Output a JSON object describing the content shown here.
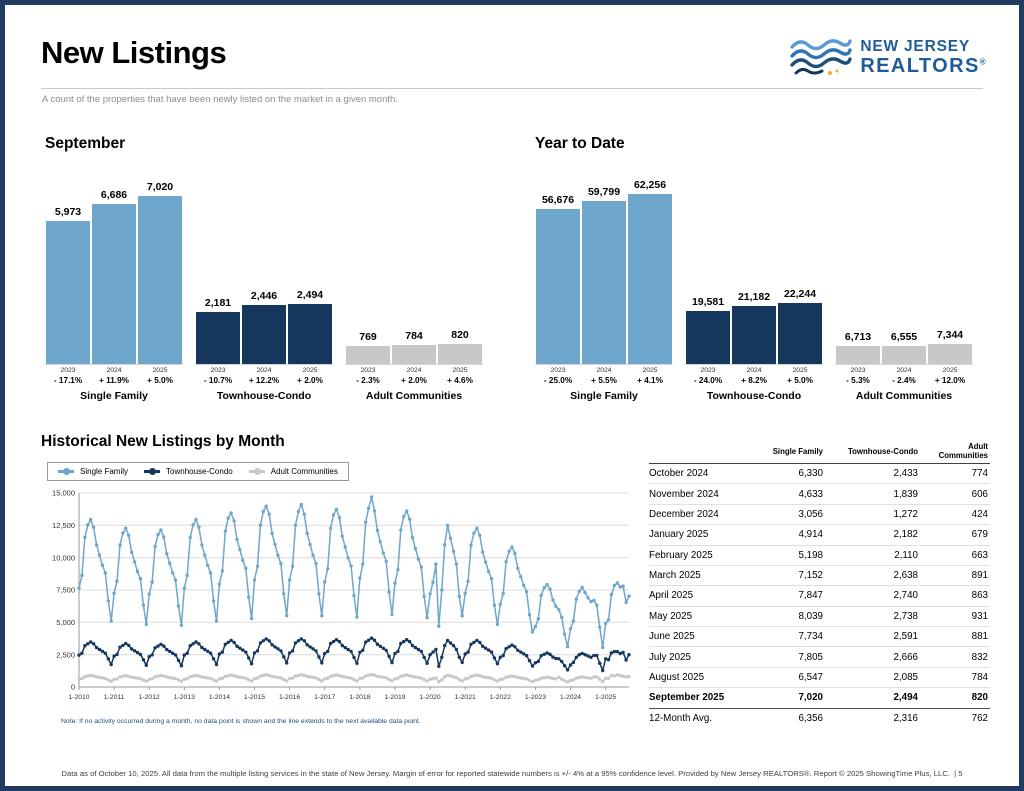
{
  "page": {
    "title": "New Listings",
    "subtitle": "A count of the properties that have been newly listed on the market in a given month.",
    "footer": "Data as of October 10, 2025. All data from the multiple listing services in the state of New Jersey. Margin of error for reported statewide numbers is +/- 4% at a 95% confidence level. Provided by New Jersey REALTORS®. Report © 2025 ShowingTime Plus, LLC.",
    "page_label": "| 5"
  },
  "logo": {
    "line1": "NEW JERSEY",
    "line2": "REALTORS",
    "registered": "®"
  },
  "colors": {
    "single_family": "#6FA6CB",
    "townhouse_condo": "#16375D",
    "adult_communities": "#C8C8C8",
    "page_border": "#203A60",
    "logo_blue": "#1F5C99",
    "note_blue": "#1F4E79"
  },
  "chart_data": [
    {
      "type": "bar",
      "title": "September",
      "years": [
        "2023",
        "2024",
        "2025"
      ],
      "ylim": [
        0,
        7500
      ],
      "groups": [
        {
          "label": "Single Family",
          "values": [
            5973,
            6686,
            7020
          ],
          "changes": [
            "- 17.1%",
            "+ 11.9%",
            "+ 5.0%"
          ]
        },
        {
          "label": "Townhouse-Condo",
          "values": [
            2181,
            2446,
            2494
          ],
          "changes": [
            "- 10.7%",
            "+ 12.2%",
            "+ 2.0%"
          ]
        },
        {
          "label": "Adult Communities",
          "values": [
            769,
            784,
            820
          ],
          "changes": [
            "- 2.3%",
            "+ 2.0%",
            "+ 4.6%"
          ]
        }
      ]
    },
    {
      "type": "bar",
      "title": "Year to Date",
      "years": [
        "2023",
        "2024",
        "2025"
      ],
      "ylim": [
        0,
        66000
      ],
      "groups": [
        {
          "label": "Single Family",
          "values": [
            56676,
            59799,
            62256
          ],
          "changes": [
            "- 25.0%",
            "+ 5.5%",
            "+ 4.1%"
          ]
        },
        {
          "label": "Townhouse-Condo",
          "values": [
            19581,
            21182,
            22244
          ],
          "changes": [
            "- 24.0%",
            "+ 8.2%",
            "+ 5.0%"
          ]
        },
        {
          "label": "Adult Communities",
          "values": [
            6713,
            6555,
            7344
          ],
          "changes": [
            "- 5.3%",
            "- 2.4%",
            "+ 12.0%"
          ]
        }
      ]
    },
    {
      "type": "line",
      "title": "Historical New Listings by Month",
      "note": "Note: If no activity occurred during a month, no data point is shown and the line extends to the next available data point.",
      "x_start": "1-2010",
      "x_end": "9-2025",
      "x_ticks": [
        "1-2010",
        "1-2011",
        "1-2012",
        "1-2013",
        "1-2014",
        "1-2015",
        "1-2016",
        "1-2017",
        "1-2018",
        "1-2019",
        "1-2020",
        "1-2021",
        "1-2022",
        "1-2023",
        "1-2024",
        "1-2025"
      ],
      "ylim": [
        0,
        15000
      ],
      "yticks": [
        0,
        2500,
        5000,
        7500,
        10000,
        12500,
        15000
      ],
      "series": [
        {
          "name": "Single Family",
          "color": "#6FA6CB",
          "values": [
            7640,
            8620,
            11560,
            12540,
            12940,
            12350,
            10980,
            10190,
            9410,
            8820,
            6660,
            5100,
            7250,
            8180,
            10970,
            11900,
            12280,
            11720,
            10420,
            9670,
            8930,
            8370,
            6320,
            4840,
            7180,
            8100,
            10860,
            11780,
            12140,
            11590,
            10300,
            9570,
            8830,
            8280,
            6260,
            4780,
            7640,
            8620,
            11560,
            12540,
            12940,
            12350,
            10980,
            10190,
            9410,
            8820,
            6660,
            5100,
            7960,
            8980,
            12040,
            13060,
            13460,
            12850,
            11420,
            10610,
            9790,
            9180,
            6940,
            5300,
            8270,
            9330,
            12510,
            13570,
            13990,
            13360,
            11870,
            11020,
            10180,
            9540,
            7210,
            5510,
            8270,
            9330,
            12510,
            13570,
            14100,
            13360,
            11870,
            11020,
            10180,
            9540,
            7210,
            5510,
            8110,
            9150,
            12270,
            13310,
            13730,
            13100,
            11650,
            10820,
            9980,
            9360,
            7070,
            5410,
            8420,
            9500,
            12740,
            13820,
            14700,
            13610,
            12100,
            11230,
            10370,
            9720,
            7340,
            5620,
            8030,
            9060,
            12150,
            13180,
            13600,
            12980,
            11540,
            10710,
            9890,
            9270,
            7000,
            5360,
            7200,
            8100,
            9500,
            4700,
            7500,
            11000,
            12500,
            11500,
            10500,
            9500,
            7000,
            5500,
            7250,
            8180,
            10970,
            11900,
            12280,
            11720,
            10420,
            9670,
            8930,
            8370,
            6320,
            4840,
            6400,
            7220,
            9680,
            10500,
            10820,
            10330,
            9180,
            8530,
            7870,
            7380,
            5580,
            4260,
            4680,
            5280,
            7080,
            7680,
            7920,
            7560,
            6720,
            6240,
            5973,
            5400,
            4080,
            3120,
            4500,
            5100,
            6800,
            7400,
            7700,
            7300,
            6900,
            6600,
            6686,
            6330,
            4633,
            3056,
            4914,
            5198,
            7152,
            7847,
            8039,
            7734,
            7805,
            6547,
            7020
          ]
        },
        {
          "name": "Townhouse-Condo",
          "color": "#16375D",
          "values": [
            2470,
            2610,
            3190,
            3340,
            3480,
            3340,
            3050,
            2900,
            2760,
            2610,
            2180,
            1740,
            2380,
            2520,
            3080,
            3220,
            3360,
            3220,
            2940,
            2800,
            2660,
            2520,
            2100,
            1680,
            2340,
            2480,
            3030,
            3160,
            3300,
            3160,
            2890,
            2750,
            2610,
            2480,
            2060,
            1650,
            2470,
            2610,
            3190,
            3340,
            3480,
            3340,
            3050,
            2900,
            2760,
            2610,
            2180,
            1740,
            2550,
            2700,
            3300,
            3450,
            3600,
            3450,
            3150,
            3000,
            2850,
            2700,
            2250,
            1800,
            2640,
            2790,
            3410,
            3570,
            3720,
            3570,
            3260,
            3100,
            2950,
            2790,
            2330,
            1860,
            2640,
            2790,
            3410,
            3570,
            3720,
            3570,
            3260,
            3100,
            2950,
            2790,
            2330,
            1860,
            2590,
            2750,
            3360,
            3510,
            3660,
            3510,
            3200,
            3050,
            2900,
            2750,
            2290,
            1830,
            2680,
            2840,
            3470,
            3620,
            3780,
            3620,
            3310,
            3150,
            2990,
            2840,
            2360,
            1890,
            2590,
            2750,
            3360,
            3510,
            3660,
            3510,
            3200,
            3050,
            2900,
            2750,
            2290,
            1830,
            2500,
            2700,
            2900,
            1600,
            2300,
            3200,
            3600,
            3400,
            3200,
            2900,
            2300,
            1900,
            2550,
            2700,
            3300,
            3450,
            3600,
            3450,
            3150,
            3000,
            2850,
            2700,
            2250,
            1800,
            2300,
            2430,
            2970,
            3110,
            3240,
            3110,
            2840,
            2700,
            2570,
            2430,
            2030,
            1620,
            1870,
            1980,
            2420,
            2530,
            2640,
            2530,
            2310,
            2200,
            2181,
            1980,
            1650,
            1320,
            1700,
            1900,
            2300,
            2500,
            2600,
            2500,
            2400,
            2300,
            2446,
            2433,
            1839,
            1272,
            2182,
            2110,
            2638,
            2740,
            2738,
            2591,
            2666,
            2085,
            2494
          ]
        },
        {
          "name": "Adult Communities",
          "color": "#C8C8C8",
          "values": [
            600,
            650,
            800,
            850,
            900,
            850,
            780,
            740,
            700,
            660,
            550,
            450,
            580,
            630,
            780,
            830,
            870,
            830,
            760,
            720,
            680,
            640,
            540,
            440,
            590,
            640,
            790,
            840,
            880,
            840,
            770,
            730,
            690,
            650,
            540,
            440,
            600,
            650,
            800,
            850,
            900,
            850,
            780,
            740,
            700,
            660,
            550,
            450,
            620,
            670,
            820,
            870,
            920,
            870,
            800,
            760,
            720,
            680,
            560,
            460,
            640,
            690,
            840,
            890,
            950,
            890,
            820,
            780,
            740,
            700,
            580,
            470,
            640,
            690,
            840,
            890,
            950,
            890,
            820,
            780,
            740,
            700,
            580,
            470,
            630,
            680,
            830,
            880,
            930,
            880,
            810,
            770,
            730,
            690,
            570,
            460,
            650,
            700,
            860,
            910,
            960,
            910,
            830,
            790,
            750,
            710,
            590,
            480,
            630,
            680,
            830,
            880,
            930,
            880,
            810,
            770,
            730,
            690,
            570,
            460,
            600,
            650,
            700,
            400,
            550,
            800,
            900,
            850,
            800,
            720,
            580,
            470,
            620,
            670,
            820,
            870,
            920,
            870,
            800,
            760,
            720,
            680,
            560,
            460,
            580,
            620,
            760,
            800,
            840,
            800,
            740,
            700,
            660,
            620,
            520,
            420,
            520,
            560,
            680,
            720,
            760,
            720,
            660,
            630,
            769,
            600,
            480,
            400,
            500,
            550,
            680,
            730,
            770,
            740,
            700,
            680,
            784,
            774,
            606,
            424,
            679,
            663,
            891,
            863,
            931,
            881,
            832,
            784,
            820
          ]
        }
      ]
    }
  ],
  "table": {
    "columns": [
      "Single Family",
      "Townhouse-Condo",
      "Adult Communities"
    ],
    "rows": [
      {
        "label": "October 2024",
        "values": [
          "6,330",
          "2,433",
          "774"
        ]
      },
      {
        "label": "November 2024",
        "values": [
          "4,633",
          "1,839",
          "606"
        ]
      },
      {
        "label": "December 2024",
        "values": [
          "3,056",
          "1,272",
          "424"
        ]
      },
      {
        "label": "January 2025",
        "values": [
          "4,914",
          "2,182",
          "679"
        ]
      },
      {
        "label": "February 2025",
        "values": [
          "5,198",
          "2,110",
          "663"
        ]
      },
      {
        "label": "March 2025",
        "values": [
          "7,152",
          "2,638",
          "891"
        ]
      },
      {
        "label": "April 2025",
        "values": [
          "7,847",
          "2,740",
          "863"
        ]
      },
      {
        "label": "May 2025",
        "values": [
          "8,039",
          "2,738",
          "931"
        ]
      },
      {
        "label": "June 2025",
        "values": [
          "7,734",
          "2,591",
          "881"
        ]
      },
      {
        "label": "July 2025",
        "values": [
          "7,805",
          "2,666",
          "832"
        ]
      },
      {
        "label": "August 2025",
        "values": [
          "6,547",
          "2,085",
          "784"
        ]
      },
      {
        "label": "September 2025",
        "values": [
          "7,020",
          "2,494",
          "820"
        ],
        "bold": true
      },
      {
        "label": "12-Month Avg.",
        "values": [
          "6,356",
          "2,316",
          "762"
        ],
        "avg": true
      }
    ]
  }
}
